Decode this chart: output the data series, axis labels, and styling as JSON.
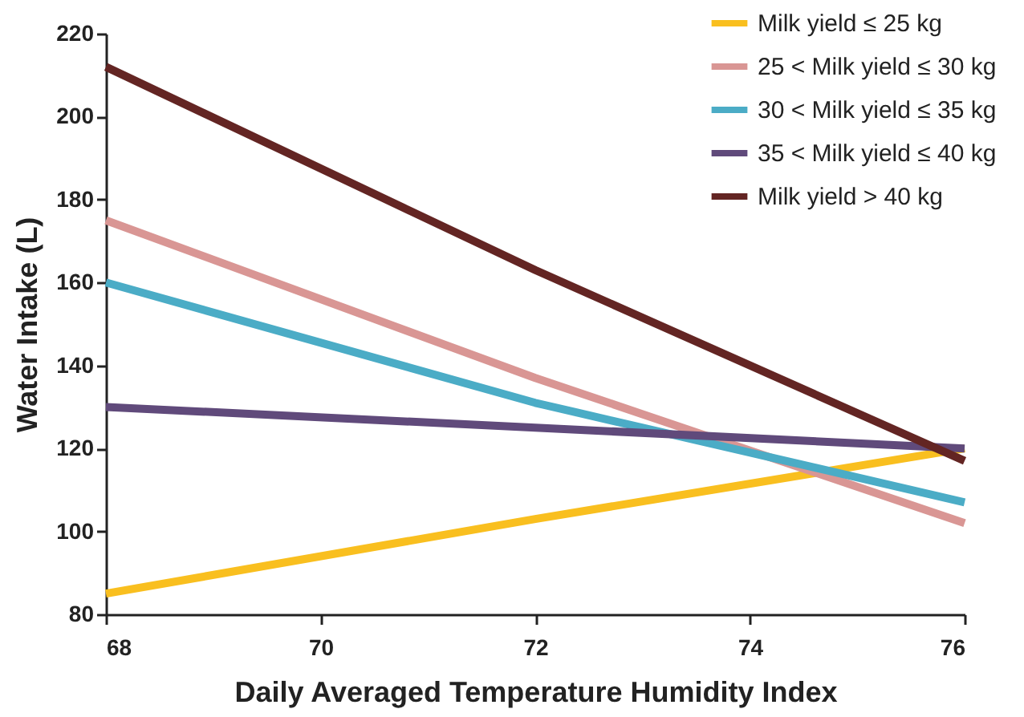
{
  "chart_data": {
    "type": "line",
    "xlabel": "Daily Averaged Temperature Humidity Index",
    "ylabel": "Water Intake (L)",
    "x": [
      68,
      72,
      76
    ],
    "series": [
      {
        "name": "Milk yield ≤ 25 kg",
        "color": "#f9bf1f",
        "values": [
          85,
          103,
          120
        ]
      },
      {
        "name": "25 < Milk yield ≤ 30 kg",
        "color": "#d99694",
        "values": [
          175,
          137,
          102
        ]
      },
      {
        "name": "30 < Milk yield ≤ 35 kg",
        "color": "#4bacc6",
        "values": [
          160,
          131,
          107
        ]
      },
      {
        "name": "35 < Milk yield ≤ 40 kg",
        "color": "#604a7b",
        "values": [
          130,
          125,
          120
        ]
      },
      {
        "name": "Milk yield > 40 kg",
        "color": "#632523",
        "values": [
          212,
          163,
          117
        ]
      }
    ],
    "xlim": [
      68,
      76
    ],
    "xticks": [
      68,
      70,
      72,
      74,
      76
    ],
    "ylim": [
      80,
      220
    ],
    "yticks": [
      80,
      100,
      120,
      140,
      160,
      180,
      200,
      220
    ],
    "grid": false,
    "legend": "top right",
    "marker": "none",
    "line_style": "solid"
  }
}
